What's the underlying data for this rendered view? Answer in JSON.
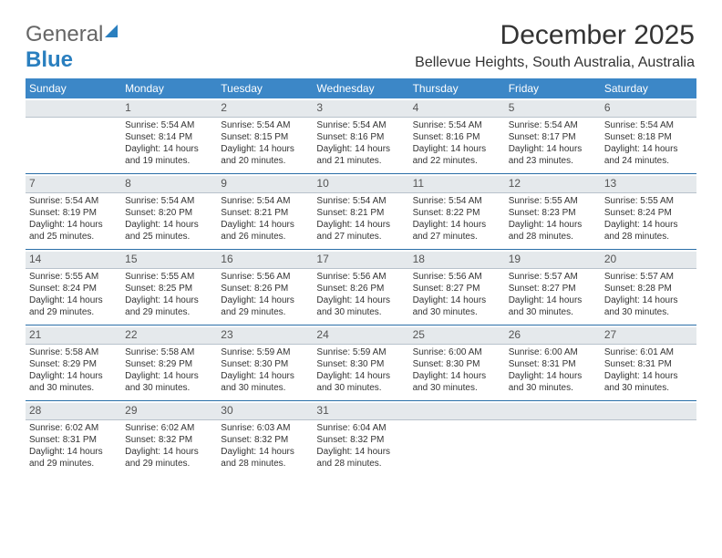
{
  "logo": {
    "part1": "General",
    "part2": "Blue"
  },
  "title": "December 2025",
  "subtitle": "Bellevue Heights, South Australia, Australia",
  "header_bg": "#3c87c7",
  "daynum_bg": "#e5e9ec",
  "divider_color": "#2a6fa8",
  "days_of_week": [
    "Sunday",
    "Monday",
    "Tuesday",
    "Wednesday",
    "Thursday",
    "Friday",
    "Saturday"
  ],
  "weeks": [
    [
      {
        "n": "",
        "lines": []
      },
      {
        "n": "1",
        "lines": [
          "Sunrise: 5:54 AM",
          "Sunset: 8:14 PM",
          "Daylight: 14 hours",
          "and 19 minutes."
        ]
      },
      {
        "n": "2",
        "lines": [
          "Sunrise: 5:54 AM",
          "Sunset: 8:15 PM",
          "Daylight: 14 hours",
          "and 20 minutes."
        ]
      },
      {
        "n": "3",
        "lines": [
          "Sunrise: 5:54 AM",
          "Sunset: 8:16 PM",
          "Daylight: 14 hours",
          "and 21 minutes."
        ]
      },
      {
        "n": "4",
        "lines": [
          "Sunrise: 5:54 AM",
          "Sunset: 8:16 PM",
          "Daylight: 14 hours",
          "and 22 minutes."
        ]
      },
      {
        "n": "5",
        "lines": [
          "Sunrise: 5:54 AM",
          "Sunset: 8:17 PM",
          "Daylight: 14 hours",
          "and 23 minutes."
        ]
      },
      {
        "n": "6",
        "lines": [
          "Sunrise: 5:54 AM",
          "Sunset: 8:18 PM",
          "Daylight: 14 hours",
          "and 24 minutes."
        ]
      }
    ],
    [
      {
        "n": "7",
        "lines": [
          "Sunrise: 5:54 AM",
          "Sunset: 8:19 PM",
          "Daylight: 14 hours",
          "and 25 minutes."
        ]
      },
      {
        "n": "8",
        "lines": [
          "Sunrise: 5:54 AM",
          "Sunset: 8:20 PM",
          "Daylight: 14 hours",
          "and 25 minutes."
        ]
      },
      {
        "n": "9",
        "lines": [
          "Sunrise: 5:54 AM",
          "Sunset: 8:21 PM",
          "Daylight: 14 hours",
          "and 26 minutes."
        ]
      },
      {
        "n": "10",
        "lines": [
          "Sunrise: 5:54 AM",
          "Sunset: 8:21 PM",
          "Daylight: 14 hours",
          "and 27 minutes."
        ]
      },
      {
        "n": "11",
        "lines": [
          "Sunrise: 5:54 AM",
          "Sunset: 8:22 PM",
          "Daylight: 14 hours",
          "and 27 minutes."
        ]
      },
      {
        "n": "12",
        "lines": [
          "Sunrise: 5:55 AM",
          "Sunset: 8:23 PM",
          "Daylight: 14 hours",
          "and 28 minutes."
        ]
      },
      {
        "n": "13",
        "lines": [
          "Sunrise: 5:55 AM",
          "Sunset: 8:24 PM",
          "Daylight: 14 hours",
          "and 28 minutes."
        ]
      }
    ],
    [
      {
        "n": "14",
        "lines": [
          "Sunrise: 5:55 AM",
          "Sunset: 8:24 PM",
          "Daylight: 14 hours",
          "and 29 minutes."
        ]
      },
      {
        "n": "15",
        "lines": [
          "Sunrise: 5:55 AM",
          "Sunset: 8:25 PM",
          "Daylight: 14 hours",
          "and 29 minutes."
        ]
      },
      {
        "n": "16",
        "lines": [
          "Sunrise: 5:56 AM",
          "Sunset: 8:26 PM",
          "Daylight: 14 hours",
          "and 29 minutes."
        ]
      },
      {
        "n": "17",
        "lines": [
          "Sunrise: 5:56 AM",
          "Sunset: 8:26 PM",
          "Daylight: 14 hours",
          "and 30 minutes."
        ]
      },
      {
        "n": "18",
        "lines": [
          "Sunrise: 5:56 AM",
          "Sunset: 8:27 PM",
          "Daylight: 14 hours",
          "and 30 minutes."
        ]
      },
      {
        "n": "19",
        "lines": [
          "Sunrise: 5:57 AM",
          "Sunset: 8:27 PM",
          "Daylight: 14 hours",
          "and 30 minutes."
        ]
      },
      {
        "n": "20",
        "lines": [
          "Sunrise: 5:57 AM",
          "Sunset: 8:28 PM",
          "Daylight: 14 hours",
          "and 30 minutes."
        ]
      }
    ],
    [
      {
        "n": "21",
        "lines": [
          "Sunrise: 5:58 AM",
          "Sunset: 8:29 PM",
          "Daylight: 14 hours",
          "and 30 minutes."
        ]
      },
      {
        "n": "22",
        "lines": [
          "Sunrise: 5:58 AM",
          "Sunset: 8:29 PM",
          "Daylight: 14 hours",
          "and 30 minutes."
        ]
      },
      {
        "n": "23",
        "lines": [
          "Sunrise: 5:59 AM",
          "Sunset: 8:30 PM",
          "Daylight: 14 hours",
          "and 30 minutes."
        ]
      },
      {
        "n": "24",
        "lines": [
          "Sunrise: 5:59 AM",
          "Sunset: 8:30 PM",
          "Daylight: 14 hours",
          "and 30 minutes."
        ]
      },
      {
        "n": "25",
        "lines": [
          "Sunrise: 6:00 AM",
          "Sunset: 8:30 PM",
          "Daylight: 14 hours",
          "and 30 minutes."
        ]
      },
      {
        "n": "26",
        "lines": [
          "Sunrise: 6:00 AM",
          "Sunset: 8:31 PM",
          "Daylight: 14 hours",
          "and 30 minutes."
        ]
      },
      {
        "n": "27",
        "lines": [
          "Sunrise: 6:01 AM",
          "Sunset: 8:31 PM",
          "Daylight: 14 hours",
          "and 30 minutes."
        ]
      }
    ],
    [
      {
        "n": "28",
        "lines": [
          "Sunrise: 6:02 AM",
          "Sunset: 8:31 PM",
          "Daylight: 14 hours",
          "and 29 minutes."
        ]
      },
      {
        "n": "29",
        "lines": [
          "Sunrise: 6:02 AM",
          "Sunset: 8:32 PM",
          "Daylight: 14 hours",
          "and 29 minutes."
        ]
      },
      {
        "n": "30",
        "lines": [
          "Sunrise: 6:03 AM",
          "Sunset: 8:32 PM",
          "Daylight: 14 hours",
          "and 28 minutes."
        ]
      },
      {
        "n": "31",
        "lines": [
          "Sunrise: 6:04 AM",
          "Sunset: 8:32 PM",
          "Daylight: 14 hours",
          "and 28 minutes."
        ]
      },
      {
        "n": "",
        "lines": []
      },
      {
        "n": "",
        "lines": []
      },
      {
        "n": "",
        "lines": []
      }
    ]
  ]
}
